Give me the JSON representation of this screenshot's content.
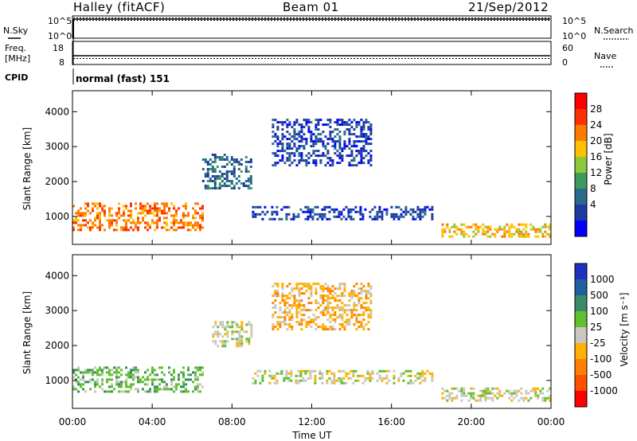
{
  "header": {
    "station": "Halley (fitACF)",
    "beam": "Beam 01",
    "date": "21/Sep/2012"
  },
  "status_panels": {
    "left": {
      "nsky": "N.Sky",
      "freq": "Freq.",
      "freq_unit": "[MHz]",
      "cpid": "CPID",
      "nsky_ticks": [
        "10^5",
        "10^0"
      ],
      "freq_ticks": [
        "18",
        "8"
      ]
    },
    "right": {
      "nsearch": "N.Search",
      "nave": "Nave",
      "nsearch_ticks": [
        "10^5",
        "10^0"
      ],
      "nave_ticks": [
        "60",
        "0"
      ]
    },
    "cpid_value": "normal (fast) 151"
  },
  "colorbars": {
    "power": {
      "label": "Power [dB]",
      "ticks": [
        "28",
        "24",
        "20",
        "16",
        "12",
        "8",
        "4"
      ],
      "colors": [
        "#ff0000",
        "#ff3000",
        "#ff7a00",
        "#ffc000",
        "#8cc83c",
        "#3c9a5a",
        "#2a6a8a",
        "#1c3aa0",
        "#0000ff"
      ]
    },
    "velocity": {
      "label": "Velocity [m s⁻¹]",
      "ticks": [
        "1000",
        "500",
        "100",
        "25",
        "-25",
        "-100",
        "-500",
        "-1000"
      ],
      "colors": [
        "#2030c0",
        "#2060a0",
        "#3a8a6a",
        "#60c030",
        "#c8c8c0",
        "#ffb000",
        "#ff8000",
        "#ff5000",
        "#ff0000"
      ]
    }
  },
  "axes": {
    "x_ticks": [
      "00:00",
      "04:00",
      "08:00",
      "12:00",
      "16:00",
      "20:00",
      "00:00"
    ],
    "xlabel": "Time UT",
    "ylabel": "Slant Range [km]",
    "y_ticks": [
      "1000",
      "2000",
      "3000",
      "4000"
    ]
  },
  "chart_data": [
    {
      "type": "heatmap",
      "title": "",
      "quantity": "Power",
      "unit": "dB",
      "xlabel": "Time UT",
      "ylabel": "Slant Range [km]",
      "xlim": [
        0,
        24
      ],
      "ylim": [
        200,
        4600
      ],
      "clim": [
        0,
        32
      ],
      "features": [
        {
          "t": [
            0,
            6.5
          ],
          "range_km": [
            600,
            1400
          ],
          "value_db": 24
        },
        {
          "t": [
            6.5,
            9
          ],
          "range_km": [
            1800,
            2800
          ],
          "value_db": 10
        },
        {
          "t": [
            9,
            18
          ],
          "range_km": [
            900,
            1300
          ],
          "value_db": 6
        },
        {
          "t": [
            10,
            15
          ],
          "range_km": [
            2500,
            3800
          ],
          "value_db": 6
        },
        {
          "t": [
            18.5,
            24
          ],
          "range_km": [
            400,
            800
          ],
          "value_db": 22
        }
      ]
    },
    {
      "type": "heatmap",
      "title": "",
      "quantity": "Velocity",
      "unit": "m s^-1",
      "xlabel": "Time UT",
      "ylabel": "Slant Range [km]",
      "xlim": [
        0,
        24
      ],
      "ylim": [
        200,
        4600
      ],
      "clim": [
        -1000,
        1000
      ],
      "features": [
        {
          "t": [
            0,
            6.5
          ],
          "range_km": [
            700,
            1400
          ],
          "value_ms": 150
        },
        {
          "t": [
            7,
            9
          ],
          "range_km": [
            2000,
            2700
          ],
          "value_ms": 0
        },
        {
          "t": [
            9,
            18
          ],
          "range_km": [
            900,
            1300
          ],
          "value_ms": 0
        },
        {
          "t": [
            10,
            15
          ],
          "range_km": [
            2500,
            3800
          ],
          "value_ms": -300
        },
        {
          "t": [
            18.5,
            24
          ],
          "range_km": [
            400,
            800
          ],
          "value_ms": -100
        }
      ]
    }
  ]
}
